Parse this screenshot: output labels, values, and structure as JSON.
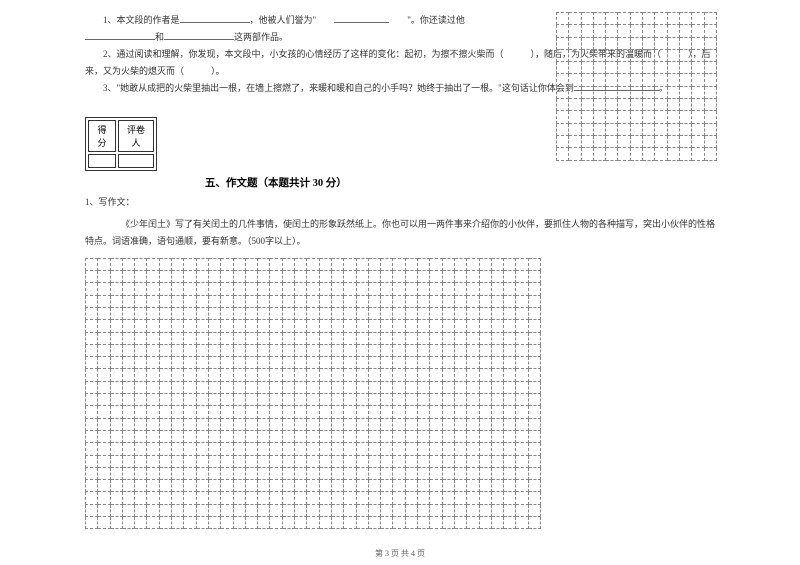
{
  "questions": {
    "q1_pre": "1、本文段的作者是",
    "q1_mid1": "，他被人们誉为\"",
    "q1_mid2": "\"。你还读过他",
    "q1_line2_pre": "",
    "q1_and": "和",
    "q1_end": "这两部作品。",
    "q2_pre": "2、通过阅读和理解，你发现，本文段中，小女孩的心情经历了这样的变化：起初，为擦不擦火柴而（　　　），随后，为火柴带来的温暖而（　　　），后来，又为火柴的熄灭而（　　　）。",
    "q3": "3、\"她敢从成把的火柴里抽出一根，在墙上擦燃了，来暖和暖和自己的小手吗？她终于抽出了一根。\"这句话让你体会到",
    "q3_end": "。"
  },
  "scorebox": {
    "col1": "得分",
    "col2": "评卷人"
  },
  "section": {
    "title": "五、作文题（本题共计 30 分）"
  },
  "essay": {
    "label": "1、写作文：",
    "body": "《少年闰土》写了有关闰土的几件事情，使闰土的形象跃然纸上。你也可以用一两件事来介绍你的小伙伴，要抓住人物的各种描写，突出小伙伴的性格特点。词语准确，语句通顺，要有新意。（500字以上）。"
  },
  "grid": {
    "left_cols": 37,
    "left_rows": 22,
    "right_cols": 13,
    "right_rows": 12
  },
  "footer": {
    "text": "第 3 页 共 4 页"
  },
  "style": {
    "blank_short": 55,
    "blank_med": 70,
    "blank_long": 85
  }
}
